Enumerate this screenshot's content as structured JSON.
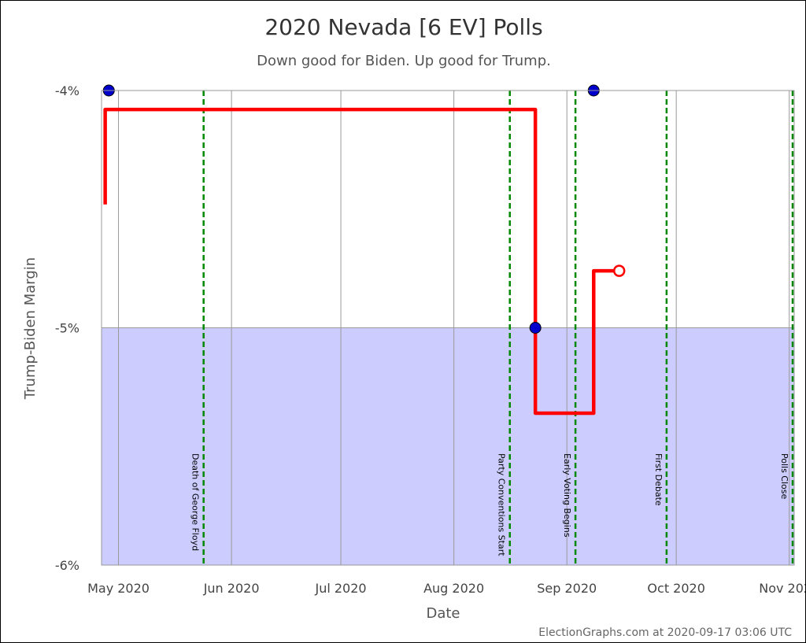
{
  "chart_data": {
    "type": "line",
    "title": "2020 Nevada [6 EV] Polls",
    "subtitle": "Down good for Biden. Up good for Trump.",
    "xlabel": "Date",
    "ylabel": "Trump-Biden Margin",
    "credit": "ElectionGraphs.com at 2020-09-17 03:06 UTC",
    "xlim": [
      "2020-04-27",
      "2020-11-03"
    ],
    "ylim": [
      -6,
      -4
    ],
    "grid": true,
    "x_ticks": [
      {
        "date": "2020-05-01",
        "label": "May 2020"
      },
      {
        "date": "2020-06-01",
        "label": "Jun 2020"
      },
      {
        "date": "2020-07-01",
        "label": "Jul 2020"
      },
      {
        "date": "2020-08-01",
        "label": "Aug 2020"
      },
      {
        "date": "2020-09-01",
        "label": "Sep 2020"
      },
      {
        "date": "2020-10-01",
        "label": "Oct 2020"
      },
      {
        "date": "2020-11-01",
        "label": "Nov 2020"
      }
    ],
    "y_ticks": [
      {
        "value": -4,
        "label": "-4%"
      },
      {
        "value": -5,
        "label": "-5%"
      },
      {
        "value": -6,
        "label": "-6%"
      }
    ],
    "colors": {
      "biden_region": "#ccccff",
      "average_line": "#ff0000",
      "poll_point": "#0000cc",
      "event_line": "#008800",
      "grid": "#999999"
    },
    "shaded_region": {
      "from": -6,
      "to": -5
    },
    "events": [
      {
        "date": "2020-05-25",
        "label": "Death of George Floyd"
      },
      {
        "date": "2020-08-17",
        "label": "Party Conventions Start"
      },
      {
        "date": "2020-09-04",
        "label": "Early Voting Begins"
      },
      {
        "date": "2020-09-29",
        "label": "First Debate"
      },
      {
        "date": "2020-11-03",
        "label": "Polls Close"
      }
    ],
    "series": [
      {
        "values": [
          {
            "x": "2020-04-28",
            "y": -4.48
          },
          {
            "x": "2020-04-28",
            "y": -4.08
          },
          {
            "x": "2020-08-24",
            "y": -4.08
          },
          {
            "x": "2020-08-24",
            "y": -5.36
          },
          {
            "x": "2020-09-09",
            "y": -5.36
          },
          {
            "x": "2020-09-09",
            "y": -4.76
          },
          {
            "x": "2020-09-16",
            "y": -4.76
          }
        ]
      },
      {
        "values": [
          {
            "x": "2020-04-29",
            "y": -4
          },
          {
            "x": "2020-08-24",
            "y": -5
          },
          {
            "x": "2020-09-09",
            "y": -4
          }
        ]
      }
    ]
  }
}
